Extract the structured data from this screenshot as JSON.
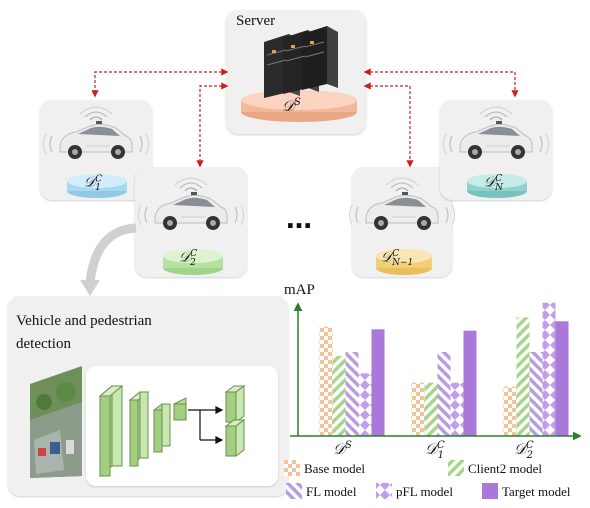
{
  "server": {
    "title": "Server",
    "dataset": "D^S"
  },
  "clients": [
    {
      "id": "client-1",
      "dataset": "D_1^C",
      "color": "#bde4f5"
    },
    {
      "id": "client-2",
      "dataset": "D_2^C",
      "color": "#c9ecb6"
    },
    {
      "id": "client-n-1",
      "dataset": "D_{N-1}^C",
      "color": "#f5d98a"
    },
    {
      "id": "client-n",
      "dataset": "D_N^C",
      "color": "#a6dcd8"
    }
  ],
  "ellipsis": "…",
  "detection_panel": {
    "title": "Vehicle and pedestrian detection",
    "line1": "Vehicle and pedestrian",
    "line2": "detection"
  },
  "chart_data": {
    "type": "bar",
    "ylabel": "mAP",
    "categories": [
      "D^S",
      "D_1^C",
      "D_2^C"
    ],
    "series": [
      {
        "name": "Base model",
        "pattern": "checker-orange",
        "values": [
          0.82,
          0.4,
          0.37
        ]
      },
      {
        "name": "Client2 model",
        "pattern": "diag-green",
        "values": [
          0.6,
          0.4,
          0.89
        ]
      },
      {
        "name": "FL model",
        "pattern": "diag-purple",
        "values": [
          0.63,
          0.63,
          0.63
        ]
      },
      {
        "name": "pFL model",
        "pattern": "diamond-purple",
        "values": [
          0.47,
          0.4,
          1.0
        ]
      },
      {
        "name": "Target model",
        "pattern": "solid-purple",
        "values": [
          0.8,
          0.79,
          0.86
        ]
      }
    ],
    "ylim": [
      0,
      1.05
    ],
    "legend_position": "bottom",
    "grid": false
  }
}
